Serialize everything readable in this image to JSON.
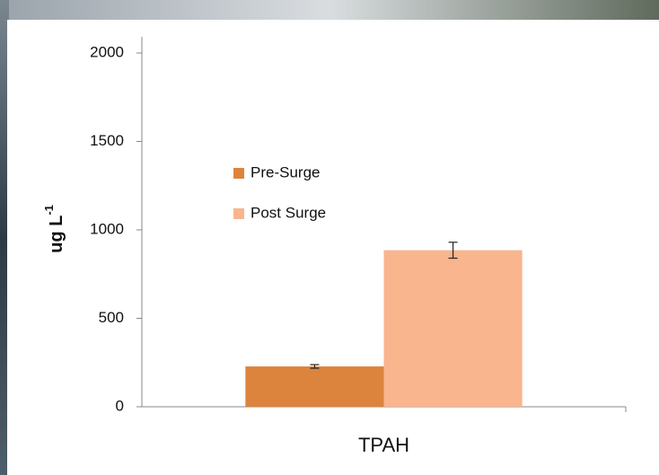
{
  "chart_data": {
    "type": "bar",
    "categories": [
      "TPAH"
    ],
    "series": [
      {
        "name": "Pre-Surge",
        "color": "#dc843d",
        "values": [
          228
        ],
        "errors": [
          10
        ]
      },
      {
        "name": "Post Surge",
        "color": "#f8b58e",
        "values": [
          885
        ],
        "errors": [
          45
        ]
      }
    ],
    "ylabel": "ug L",
    "ylabel_superscript": "-1",
    "ylim": [
      0,
      2000
    ],
    "yticks": [
      0,
      500,
      1000,
      1500,
      2000
    ]
  }
}
